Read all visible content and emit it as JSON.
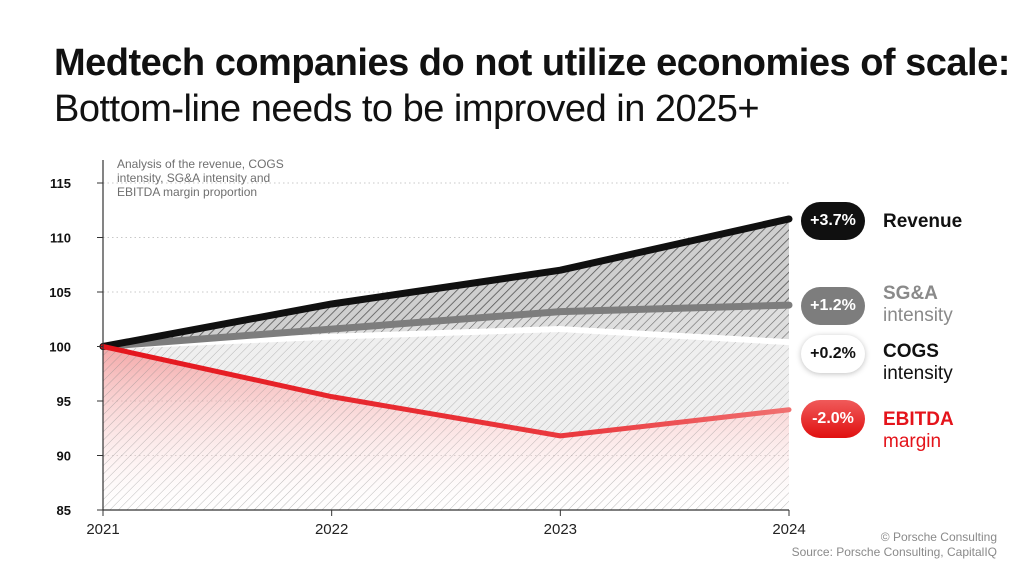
{
  "title": {
    "bold": "Medtech companies do not utilize economies of scale:",
    "light": "Bottom-line needs to be improved in 2025+"
  },
  "note": "Analysis of the revenue, COGS intensity, SG&A intensity and EBITDA margin proportion",
  "credits": {
    "copyright": "© Porsche Consulting",
    "source": "Source: Porsche Consulting, CapitalIQ"
  },
  "colors": {
    "revenue": "#101010",
    "sga": "#7d7d7d",
    "cogs": "#ffffff",
    "ebitda": "#e4141b"
  },
  "chart_data": {
    "type": "line",
    "title": "Medtech companies do not utilize economies of scale: Bottom-line needs to be improved in 2025+",
    "x": [
      "2021",
      "2022",
      "2023",
      "2024"
    ],
    "ylim": [
      85,
      115
    ],
    "yticks": [
      115,
      110,
      105,
      100,
      95,
      90,
      85
    ],
    "grid": "horizontal dotted",
    "series": [
      {
        "name": "Revenue",
        "values": [
          100,
          103.9,
          107.0,
          111.7
        ],
        "badge": "+3.7%",
        "label1": "Revenue",
        "label2": ""
      },
      {
        "name": "SG&A intensity",
        "values": [
          100,
          101.6,
          103.2,
          103.8
        ],
        "badge": "+1.2%",
        "label1": "SG&A",
        "label2": "intensity"
      },
      {
        "name": "COGS intensity",
        "values": [
          100,
          100.9,
          101.6,
          100.4
        ],
        "badge": "+0.2%",
        "label1": "COGS",
        "label2": "intensity"
      },
      {
        "name": "EBITDA margin",
        "values": [
          100,
          95.4,
          91.8,
          94.2
        ],
        "badge": "-2.0%",
        "label1": "EBITDA",
        "label2": "margin"
      }
    ]
  }
}
